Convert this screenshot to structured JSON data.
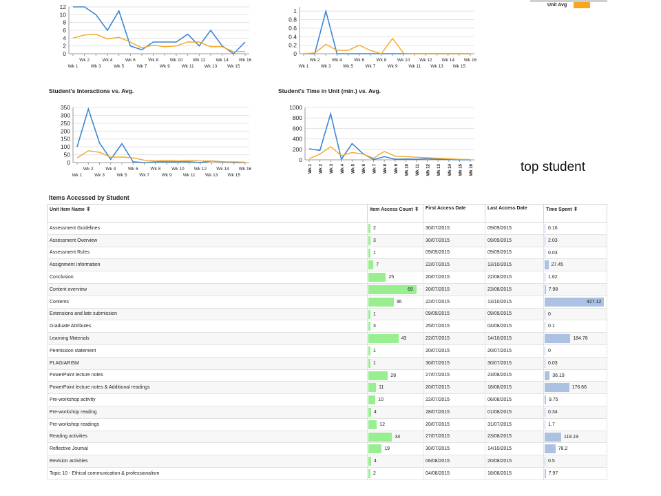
{
  "legend": {
    "label": "Unit Avg",
    "color": "#f5a623"
  },
  "colors": {
    "student": "#3a86d4",
    "avg": "#f5a623",
    "grid": "#e3e3e3",
    "count_bar": "#99ee90",
    "time_bar": "#adc1e3"
  },
  "note": {
    "text": "top student"
  },
  "charts": {
    "c1": {
      "title": "",
      "chart_data": {
        "type": "line",
        "x": [
          "Wk 1",
          "Wk 2",
          "Wk 3",
          "Wk 4",
          "Wk 5",
          "Wk 6",
          "Wk 7",
          "Wk 8",
          "Wk 9",
          "Wk 10",
          "Wk 11",
          "Wk 12",
          "Wk 13",
          "Wk 14",
          "Wk 15",
          "Wk 16"
        ],
        "ylim": [
          0,
          12
        ],
        "yticks": [
          0,
          2,
          4,
          6,
          8,
          10,
          12
        ],
        "series": [
          {
            "values": [
              12,
              12,
              10,
              6,
              11,
              2,
              1,
              3,
              3,
              3,
              5,
              2,
              6,
              2,
              0,
              3
            ]
          },
          {
            "values": [
              4,
              4.8,
              5,
              3.8,
              4.2,
              3,
              1.5,
              2.2,
              1.8,
              2,
              3,
              3,
              1.8,
              1.8,
              0.5,
              0.6
            ]
          }
        ]
      }
    },
    "c2": {
      "title": "",
      "chart_data": {
        "type": "line",
        "x": [
          "Wk 1",
          "Wk 2",
          "Wk 3",
          "Wk 4",
          "Wk 5",
          "Wk 6",
          "Wk 7",
          "Wk 8",
          "Wk 9",
          "Wk 10",
          "Wk 11",
          "Wk 12",
          "Wk 13",
          "Wk 14",
          "Wk 15",
          "Wk 16"
        ],
        "ylim": [
          0,
          1.1
        ],
        "yticks": [
          0,
          0.2,
          0.4,
          0.6,
          0.8,
          1
        ],
        "series": [
          {
            "values": [
              0,
              0,
              1,
              0,
              0,
              0,
              0,
              0,
              0,
              0,
              0,
              0,
              0,
              0,
              0,
              0
            ]
          },
          {
            "values": [
              0,
              0.02,
              0.22,
              0.08,
              0.08,
              0.2,
              0.08,
              0,
              0.36,
              0.01,
              0,
              0,
              0,
              0,
              0,
              0
            ]
          }
        ]
      }
    },
    "c3": {
      "title": "Student's Interactions vs. Avg.",
      "chart_data": {
        "type": "line",
        "x": [
          "Wk 1",
          "Wk 2",
          "Wk 3",
          "Wk 4",
          "Wk 5",
          "Wk 6",
          "Wk 7",
          "Wk 8",
          "Wk 9",
          "Wk 10",
          "Wk 11",
          "Wk 12",
          "Wk 13",
          "Wk 14",
          "Wk 15",
          "Wk 16"
        ],
        "ylim": [
          0,
          350
        ],
        "yticks": [
          0,
          50,
          100,
          150,
          200,
          250,
          300,
          350
        ],
        "series": [
          {
            "values": [
              100,
              340,
              125,
              20,
              120,
              5,
              0,
              5,
              5,
              5,
              5,
              0,
              10,
              5,
              0,
              0
            ]
          },
          {
            "values": [
              30,
              75,
              65,
              35,
              35,
              30,
              15,
              10,
              15,
              10,
              15,
              10,
              10,
              5,
              5,
              2
            ]
          }
        ]
      }
    },
    "c4": {
      "title": "Student's Time in Unit (min.) vs. Avg.",
      "chart_data": {
        "type": "line",
        "x": [
          "Wk 1",
          "Wk 2",
          "Wk 3",
          "Wk 4",
          "Wk 5",
          "Wk 6",
          "Wk 7",
          "Wk 8",
          "Wk 9",
          "Wk 10",
          "Wk 11",
          "Wk 12",
          "Wk 13",
          "Wk 14",
          "Wk 15",
          "Wk 16"
        ],
        "ylim": [
          0,
          1000
        ],
        "yticks": [
          0,
          200,
          400,
          600,
          800,
          1000
        ],
        "series": [
          {
            "values": [
              210,
              180,
              880,
              10,
              310,
              120,
              5,
              60,
              10,
              15,
              10,
              20,
              10,
              5,
              0,
              0
            ]
          },
          {
            "values": [
              20,
              110,
              250,
              80,
              140,
              110,
              30,
              160,
              70,
              60,
              50,
              40,
              30,
              20,
              10,
              5
            ]
          }
        ]
      }
    }
  },
  "table": {
    "title": "Items Accessed by Student",
    "headers": {
      "name": "Unit Item Name",
      "count": "Item Access Count",
      "first": "First Access Date",
      "last": "Last Access Date",
      "time": "Time Spent"
    },
    "count_max": 69,
    "time_max": 427.12,
    "rows": [
      {
        "name": "Assessment Guidelines",
        "count": 2,
        "first": "30/07/2015",
        "last": "09/09/2015",
        "time": 0.16
      },
      {
        "name": "Assessment Overview",
        "count": 3,
        "first": "30/07/2015",
        "last": "09/09/2015",
        "time": 2.03
      },
      {
        "name": "Assessment Rules",
        "count": 1,
        "first": "09/09/2015",
        "last": "09/09/2015",
        "time": 0.03
      },
      {
        "name": "Assignment Information",
        "count": 7,
        "first": "22/07/2015",
        "last": "13/10/2015",
        "time": 27.45
      },
      {
        "name": "Conclusion",
        "count": 25,
        "first": "20/07/2015",
        "last": "22/08/2015",
        "time": 1.62
      },
      {
        "name": "Content overview",
        "count": 69,
        "first": "20/07/2015",
        "last": "23/08/2015",
        "time": 7.98
      },
      {
        "name": "Contents",
        "count": 36,
        "first": "22/07/2015",
        "last": "13/10/2015",
        "time": 427.12
      },
      {
        "name": "Extensions and late submission",
        "count": 1,
        "first": "09/09/2015",
        "last": "09/09/2015",
        "time": 0
      },
      {
        "name": "Graduate Attributes",
        "count": 3,
        "first": "25/07/2015",
        "last": "04/08/2015",
        "time": 0.1
      },
      {
        "name": "Learning Materials",
        "count": 43,
        "first": "22/07/2015",
        "last": "14/10/2015",
        "time": 184.78
      },
      {
        "name": "Permission statement",
        "count": 1,
        "first": "20/07/2015",
        "last": "20/07/2015",
        "time": 0
      },
      {
        "name": "PLAGIARISM",
        "count": 1,
        "first": "30/07/2015",
        "last": "30/07/2015",
        "time": 0.03
      },
      {
        "name": "PowerPoint lecture notes",
        "count": 28,
        "first": "27/07/2015",
        "last": "23/08/2015",
        "time": 36.19
      },
      {
        "name": "PowerPoint lecture notes & Additional readings",
        "count": 11,
        "first": "20/07/2015",
        "last": "18/08/2015",
        "time": 176.66
      },
      {
        "name": "Pre-workshop activity",
        "count": 10,
        "first": "22/07/2015",
        "last": "06/08/2015",
        "time": 9.75
      },
      {
        "name": "Pre-workshop reading",
        "count": 4,
        "first": "28/07/2015",
        "last": "01/08/2015",
        "time": 0.34
      },
      {
        "name": "Pre-workshop readings",
        "count": 12,
        "first": "20/07/2015",
        "last": "31/07/2015",
        "time": 1.7
      },
      {
        "name": "Reading activities",
        "count": 34,
        "first": "27/07/2015",
        "last": "23/08/2015",
        "time": 119.19
      },
      {
        "name": "Reflective Journal",
        "count": 19,
        "first": "30/07/2015",
        "last": "14/10/2015",
        "time": 78.2
      },
      {
        "name": "Revision activities",
        "count": 4,
        "first": "06/08/2015",
        "last": "20/08/2015",
        "time": 0.5
      },
      {
        "name": "Topic 10 - Ethical communication & professionalism",
        "count": 2,
        "first": "04/08/2015",
        "last": "18/08/2015",
        "time": 7.97
      }
    ]
  }
}
